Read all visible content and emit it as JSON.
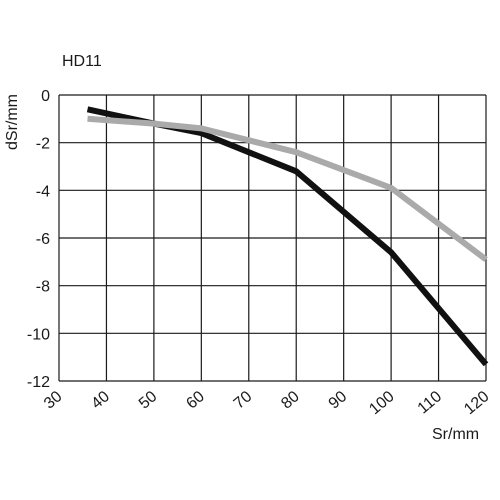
{
  "chart_data": {
    "type": "line",
    "title": "HD11",
    "xlabel": "Sr/mm",
    "ylabel": "dSr/mm",
    "xlim": [
      30,
      120
    ],
    "ylim": [
      -12,
      0
    ],
    "x_ticks": [
      30,
      40,
      50,
      60,
      70,
      80,
      90,
      100,
      110,
      120
    ],
    "y_ticks": [
      0,
      -2,
      -4,
      -6,
      -8,
      -10,
      -12
    ],
    "x_tick_labels": [
      "30",
      "40",
      "50",
      "60",
      "70",
      "80",
      "90",
      "100",
      "110",
      "120"
    ],
    "y_tick_labels": [
      "0",
      "-2",
      "-4",
      "-6",
      "-8",
      "-10",
      "-12"
    ],
    "grid": true,
    "legend": "none",
    "series": [
      {
        "color": "#111111",
        "x": [
          36,
          50,
          60,
          80,
          100,
          120
        ],
        "y": [
          -0.6,
          -1.2,
          -1.6,
          -3.2,
          -6.6,
          -11.3
        ]
      },
      {
        "color": "#aaaaaa",
        "x": [
          36,
          50,
          60,
          80,
          100,
          120
        ],
        "y": [
          -1.0,
          -1.2,
          -1.4,
          -2.4,
          -3.9,
          -6.9
        ]
      }
    ]
  }
}
